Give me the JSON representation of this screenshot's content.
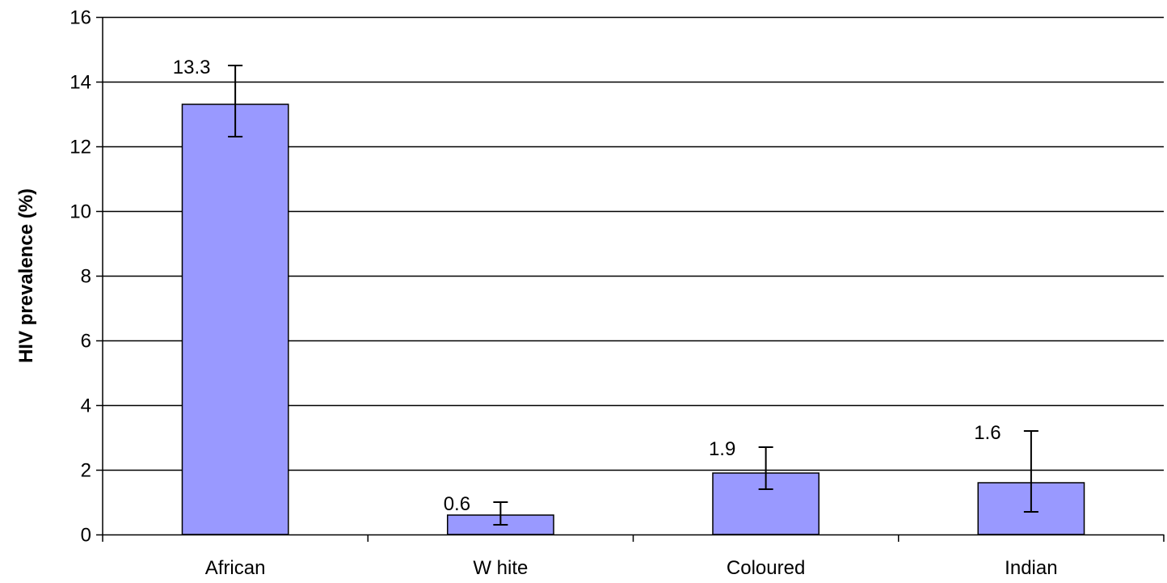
{
  "chart_data": {
    "type": "bar",
    "title": "",
    "xlabel": "",
    "ylabel": "HIV prevalence (%)",
    "ylim": [
      0,
      16
    ],
    "ytick_values": [
      0,
      2,
      4,
      6,
      8,
      10,
      12,
      14,
      16
    ],
    "ytick_labels": [
      "0",
      "2",
      "4",
      "6",
      "8",
      "10",
      "12",
      "14",
      "16"
    ],
    "categories": [
      "African",
      "W hite",
      "Coloured",
      "Indian"
    ],
    "values": [
      13.3,
      0.6,
      1.9,
      1.6
    ],
    "value_labels": [
      "13.3",
      "0.6",
      "1.9",
      "1.6"
    ],
    "error_low": [
      12.3,
      0.3,
      1.4,
      0.7
    ],
    "error_high": [
      14.5,
      1.0,
      2.7,
      3.2
    ],
    "grid": true,
    "legend": "none",
    "bar_color": "#9999ff",
    "bar_edge_color": "#000000"
  }
}
